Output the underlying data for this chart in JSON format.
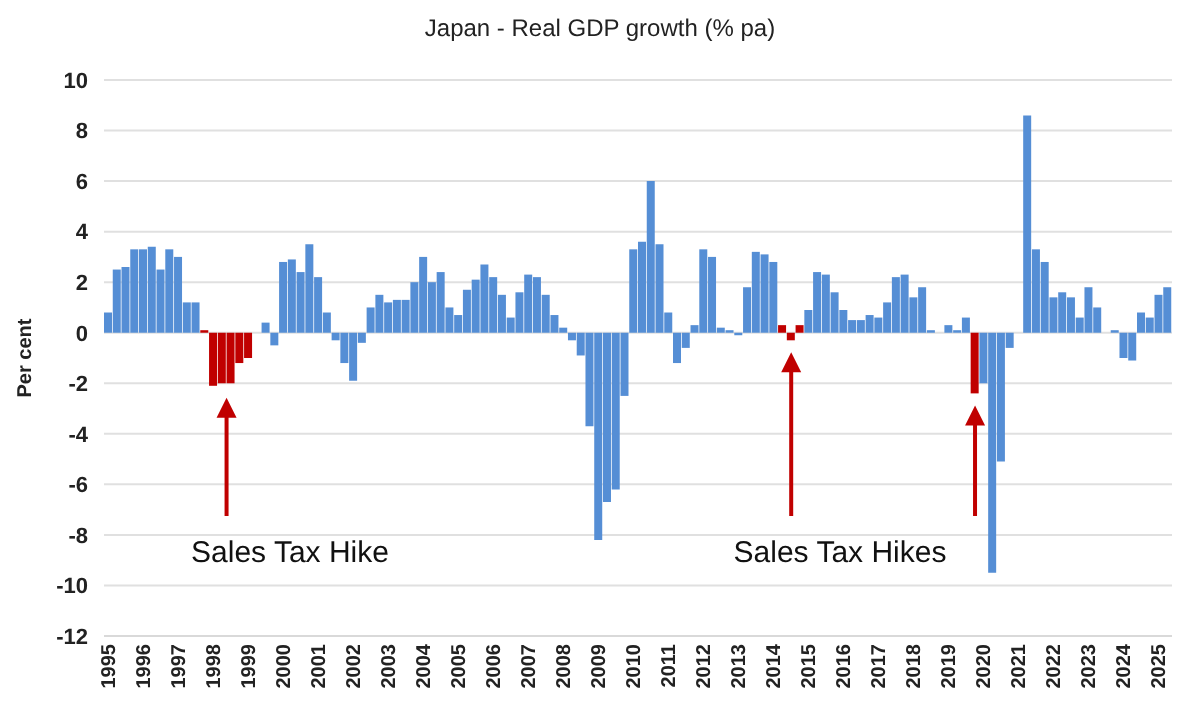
{
  "chart_data": {
    "type": "bar",
    "title": "Japan - Real GDP growth (% pa)",
    "ylabel": "Per cent",
    "categories": [
      "1995",
      null,
      null,
      null,
      "1996",
      null,
      null,
      null,
      "1997",
      null,
      null,
      null,
      "1998",
      null,
      null,
      null,
      "1999",
      null,
      null,
      null,
      "2000",
      null,
      null,
      null,
      "2001",
      null,
      null,
      null,
      "2002",
      null,
      null,
      null,
      "2003",
      null,
      null,
      null,
      "2004",
      null,
      null,
      null,
      "2005",
      null,
      null,
      null,
      "2006",
      null,
      null,
      null,
      "2007",
      null,
      null,
      null,
      "2008",
      null,
      null,
      null,
      "2009",
      null,
      null,
      null,
      "2010",
      null,
      null,
      null,
      "2011",
      null,
      null,
      null,
      "2012",
      null,
      null,
      null,
      "2013",
      null,
      null,
      null,
      "2014",
      null,
      null,
      null,
      "2015",
      null,
      null,
      null,
      "2016",
      null,
      null,
      null,
      "2017",
      null,
      null,
      null,
      "2018",
      null,
      null,
      null,
      "2019",
      null,
      null,
      null,
      "2020",
      null,
      null,
      null,
      "2021",
      null,
      null,
      null,
      "2022",
      null,
      null,
      null,
      "2023",
      null,
      null,
      null,
      "2024",
      null,
      null,
      null,
      "2025",
      null
    ],
    "values": [
      0.8,
      2.5,
      2.6,
      3.3,
      3.3,
      3.4,
      2.5,
      3.3,
      3.0,
      1.2,
      1.2,
      0.1,
      -2.1,
      -2.0,
      -2.0,
      -1.2,
      -1.0,
      0.0,
      0.4,
      -0.5,
      2.8,
      2.9,
      2.4,
      3.5,
      2.2,
      0.8,
      -0.3,
      -1.2,
      -1.9,
      -0.4,
      1.0,
      1.5,
      1.2,
      1.3,
      1.3,
      2.0,
      3.0,
      2.0,
      2.4,
      1.0,
      0.7,
      1.7,
      2.1,
      2.7,
      2.2,
      1.5,
      0.6,
      1.6,
      2.3,
      2.2,
      1.5,
      0.7,
      0.2,
      -0.3,
      -0.9,
      -3.7,
      -8.2,
      -6.7,
      -6.2,
      -2.5,
      3.3,
      3.6,
      6.0,
      3.5,
      0.8,
      -1.2,
      -0.6,
      0.3,
      3.3,
      3.0,
      0.2,
      0.1,
      -0.1,
      1.8,
      3.2,
      3.1,
      2.8,
      0.3,
      -0.3,
      0.3,
      0.9,
      2.4,
      2.3,
      1.6,
      0.9,
      0.5,
      0.5,
      0.7,
      0.6,
      1.2,
      2.2,
      2.3,
      1.4,
      1.8,
      0.1,
      0.0,
      0.3,
      0.1,
      0.6,
      -2.4,
      -2.0,
      -9.5,
      -5.1,
      -0.6,
      0.0,
      8.6,
      3.3,
      2.8,
      1.4,
      1.6,
      1.4,
      0.6,
      1.8,
      1.0,
      0.0,
      0.1,
      -1.0,
      -1.1,
      0.8,
      0.6,
      1.5,
      1.8
    ],
    "colors": [
      "#558ed5",
      "#558ed5",
      "#558ed5",
      "#558ed5",
      "#558ed5",
      "#558ed5",
      "#558ed5",
      "#558ed5",
      "#558ed5",
      "#558ed5",
      "#558ed5",
      "#c00000",
      "#c00000",
      "#c00000",
      "#c00000",
      "#c00000",
      "#c00000",
      "#558ed5",
      "#558ed5",
      "#558ed5",
      "#558ed5",
      "#558ed5",
      "#558ed5",
      "#558ed5",
      "#558ed5",
      "#558ed5",
      "#558ed5",
      "#558ed5",
      "#558ed5",
      "#558ed5",
      "#558ed5",
      "#558ed5",
      "#558ed5",
      "#558ed5",
      "#558ed5",
      "#558ed5",
      "#558ed5",
      "#558ed5",
      "#558ed5",
      "#558ed5",
      "#558ed5",
      "#558ed5",
      "#558ed5",
      "#558ed5",
      "#558ed5",
      "#558ed5",
      "#558ed5",
      "#558ed5",
      "#558ed5",
      "#558ed5",
      "#558ed5",
      "#558ed5",
      "#558ed5",
      "#558ed5",
      "#558ed5",
      "#558ed5",
      "#558ed5",
      "#558ed5",
      "#558ed5",
      "#558ed5",
      "#558ed5",
      "#558ed5",
      "#558ed5",
      "#558ed5",
      "#558ed5",
      "#558ed5",
      "#558ed5",
      "#558ed5",
      "#558ed5",
      "#558ed5",
      "#558ed5",
      "#558ed5",
      "#558ed5",
      "#558ed5",
      "#558ed5",
      "#558ed5",
      "#558ed5",
      "#c00000",
      "#c00000",
      "#c00000",
      "#558ed5",
      "#558ed5",
      "#558ed5",
      "#558ed5",
      "#558ed5",
      "#558ed5",
      "#558ed5",
      "#558ed5",
      "#558ed5",
      "#558ed5",
      "#558ed5",
      "#558ed5",
      "#558ed5",
      "#558ed5",
      "#558ed5",
      "#558ed5",
      "#558ed5",
      "#558ed5",
      "#558ed5",
      "#c00000",
      "#558ed5",
      "#558ed5",
      "#558ed5",
      "#558ed5",
      "#558ed5",
      "#558ed5",
      "#558ed5",
      "#558ed5",
      "#558ed5",
      "#558ed5",
      "#558ed5",
      "#558ed5",
      "#558ed5",
      "#558ed5",
      "#558ed5",
      "#558ed5",
      "#558ed5",
      "#558ed5",
      "#558ed5",
      "#558ed5",
      "#558ed5",
      "#558ed5"
    ],
    "ylim": [
      -12,
      10
    ],
    "yticks": [
      -12,
      -10,
      -8,
      -6,
      -4,
      -2,
      0,
      2,
      4,
      6,
      8,
      10
    ],
    "grid": "y",
    "annotations": [
      "Sales Tax Hike",
      "Sales Tax Hikes"
    ]
  }
}
